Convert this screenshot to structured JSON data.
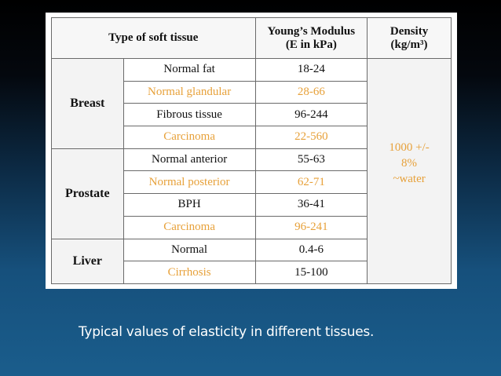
{
  "table": {
    "headers": {
      "type": "Type of soft tissue",
      "modulus_line1": "Young’s Modulus",
      "modulus_line2": "(E in kPa)",
      "density_line1": "Density",
      "density_line2": "(kg/m³)"
    },
    "groups": [
      {
        "name": "Breast",
        "rows": [
          {
            "tissue": "Normal fat",
            "modulus": "18-24"
          },
          {
            "tissue": "Normal glandular",
            "modulus": "28-66"
          },
          {
            "tissue": "Fibrous tissue",
            "modulus": "96-244"
          },
          {
            "tissue": "Carcinoma",
            "modulus": "22-560"
          }
        ]
      },
      {
        "name": "Prostate",
        "rows": [
          {
            "tissue": "Normal anterior",
            "modulus": "55-63"
          },
          {
            "tissue": "Normal posterior",
            "modulus": "62-71"
          },
          {
            "tissue": "BPH",
            "modulus": "36-41"
          },
          {
            "tissue": "Carcinoma",
            "modulus": "96-241"
          }
        ]
      },
      {
        "name": "Liver",
        "rows": [
          {
            "tissue": "Normal",
            "modulus": "0.4-6"
          },
          {
            "tissue": "Cirrhosis",
            "modulus": "15-100"
          }
        ]
      }
    ],
    "density": {
      "line1": "1000 +/-",
      "line2": "8%",
      "line3": "~water"
    }
  },
  "caption": "Typical values of elasticity in different tissues.",
  "colors": {
    "highlight_text": "#e7a13a",
    "caption_text": "#ffffff"
  }
}
